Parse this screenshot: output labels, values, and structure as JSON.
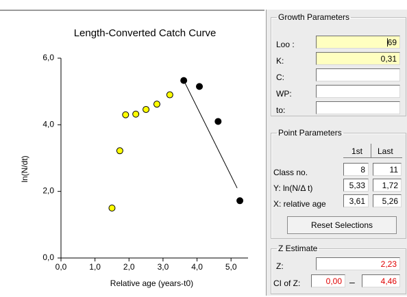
{
  "chart_data": {
    "type": "scatter",
    "title": "Length-Converted Catch Curve",
    "xlabel": "Relative age (years-t0)",
    "ylabel": "ln(N/dt)",
    "xlim": [
      0,
      5.5
    ],
    "ylim": [
      0,
      6
    ],
    "x_ticks": [
      "0,0",
      "1,0",
      "2,0",
      "3,0",
      "4,0",
      "5,0"
    ],
    "y_ticks": [
      "0,0",
      "2,0",
      "4,0",
      "6,0"
    ],
    "series": [
      {
        "color": "#ffff00",
        "points": [
          [
            1.5,
            1.5
          ],
          [
            1.73,
            3.22
          ],
          [
            1.9,
            4.3
          ],
          [
            2.2,
            4.32
          ],
          [
            2.5,
            4.46
          ],
          [
            2.82,
            4.62
          ],
          [
            3.2,
            4.9
          ]
        ]
      },
      {
        "color": "#000000",
        "points": [
          [
            3.61,
            5.33
          ],
          [
            4.07,
            5.15
          ],
          [
            4.62,
            4.1
          ],
          [
            5.26,
            1.72
          ]
        ]
      }
    ],
    "regression_line": {
      "x": [
        3.61,
        5.18
      ],
      "y": [
        5.33,
        2.1
      ]
    },
    "grid": false
  },
  "growth": {
    "title": "Growth Parameters",
    "loo_label": "Loo :",
    "loo_value": "69",
    "k_label": "K:",
    "k_value": "0,31",
    "c_label": "C:",
    "c_value": "",
    "wp_label": "WP:",
    "wp_value": "",
    "to_label": "to:",
    "to_value": ""
  },
  "points": {
    "title": "Point Parameters",
    "col_first": "1st",
    "col_last": "Last",
    "class_label": "Class no.",
    "class_first": "8",
    "class_last": "11",
    "y_label": "Y: ln(N/Δ t)",
    "y_first": "5,33",
    "y_last": "1,72",
    "x_label": "X: relative age",
    "x_first": "3,61",
    "x_last": "5,26",
    "reset_button": "Reset Selections"
  },
  "z": {
    "title": "Z Estimate",
    "z_label": "Z:",
    "z_value": "2,23",
    "ci_label": "CI of Z:",
    "ci_low": "0,00",
    "ci_dash": "–",
    "ci_high": "4,46"
  }
}
